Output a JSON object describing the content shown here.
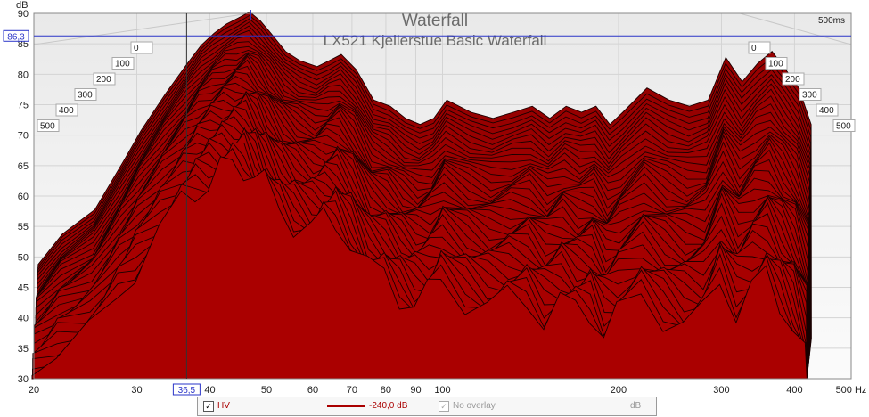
{
  "chart_data": {
    "type": "waterfall",
    "title": "Waterfall",
    "subtitle": "LX521 Kjellerstue Basic Waterfall",
    "ylabel": "dB",
    "xunit": "Hz",
    "xscale": "log",
    "xlim": [
      20,
      500
    ],
    "ylim": [
      30,
      90
    ],
    "x_ticks": [
      20,
      30,
      40,
      50,
      60,
      70,
      80,
      90,
      100,
      200,
      300,
      400,
      500
    ],
    "x_tick_labels": [
      "20",
      "30",
      "40",
      "50",
      "60",
      "70",
      "80",
      "90",
      "100",
      "200",
      "300",
      "400",
      "500 Hz"
    ],
    "y_ticks": [
      30,
      35,
      40,
      45,
      50,
      55,
      60,
      65,
      70,
      75,
      80,
      85,
      90
    ],
    "time_axis_left": [
      "0",
      "100",
      "200",
      "300",
      "400",
      "500"
    ],
    "time_axis_right": [
      "0",
      "100",
      "200",
      "300",
      "400",
      "500"
    ],
    "time_end_label": "500ms",
    "cursor": {
      "x_label": "36,5",
      "y_label": "86,3"
    },
    "grid": true,
    "series": [
      {
        "name": "HV",
        "color": "#aa0000",
        "x": [
          20,
          22,
          25,
          28,
          30,
          33,
          36,
          38,
          40,
          42,
          44,
          46,
          48,
          50,
          53,
          56,
          60,
          63,
          66,
          70,
          75,
          80,
          85,
          90,
          95,
          100,
          110,
          120,
          130,
          140,
          150,
          160,
          170,
          180,
          190,
          200,
          220,
          240,
          260,
          280,
          300,
          320,
          340,
          360,
          380,
          400,
          420
        ],
        "values": [
          47,
          52,
          56,
          64,
          69,
          75,
          80,
          83,
          85,
          86.5,
          87.5,
          88.5,
          87,
          85,
          82,
          80.5,
          79.5,
          80.5,
          81.5,
          79,
          74,
          73,
          71,
          70,
          71,
          74,
          72,
          71,
          72,
          73,
          71,
          73,
          72,
          73,
          70,
          72,
          76,
          74,
          73,
          74,
          81,
          77,
          80,
          82,
          79,
          76,
          70
        ]
      }
    ]
  },
  "legend": {
    "checkbox_mark": "✓",
    "series_label": "HV",
    "level": "-240,0 dB",
    "overlay": "No overlay",
    "overlay_unit": "dB"
  }
}
